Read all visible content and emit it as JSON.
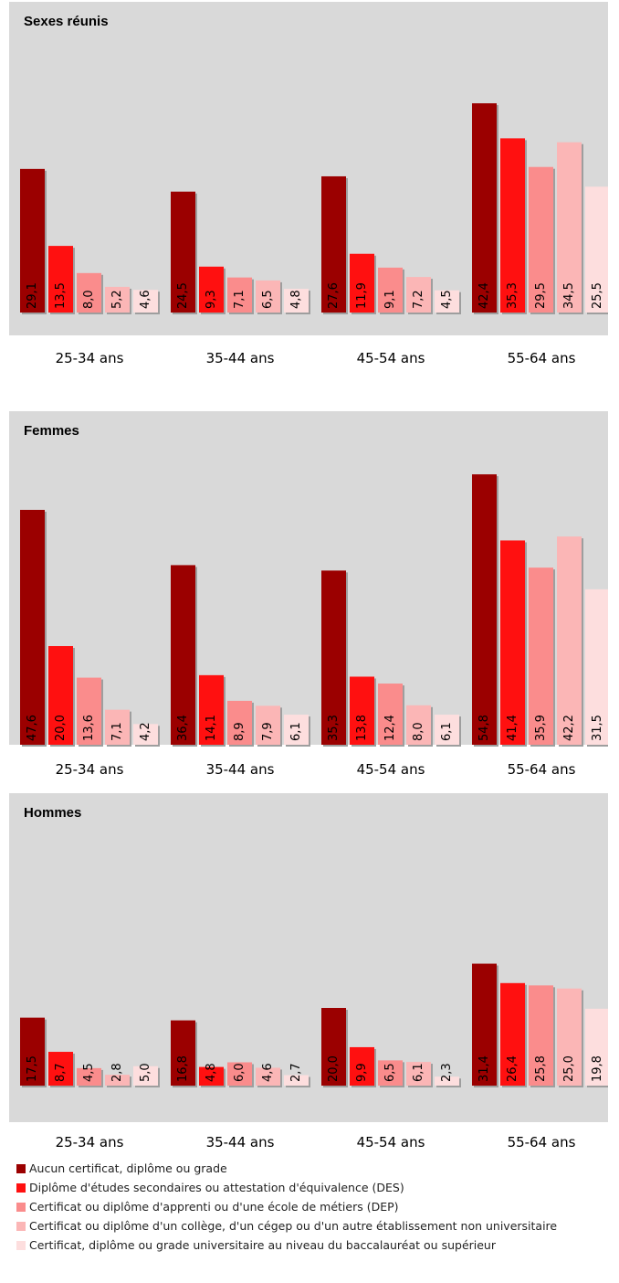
{
  "colors": [
    "#9b0000",
    "#ff1010",
    "#fa8c8c",
    "#fbb6b6",
    "#fddede"
  ],
  "legend": [
    "Aucun certificat, diplôme ou grade",
    "Diplôme d'études secondaires ou attestation d'équivalence (DES)",
    "Certificat ou diplôme d'apprenti ou d'une école de métiers (DEP)",
    "Certificat ou diplôme d'un collège, d'un cégep ou d'un autre établissement non universitaire",
    "Certificat, diplôme ou grade universitaire au niveau du baccalauréat ou supérieur"
  ],
  "chart_data": [
    {
      "type": "bar",
      "title": "Sexes réunis",
      "categories": [
        "25-34 ans",
        "35-44 ans",
        "45-54 ans",
        "55-64 ans"
      ],
      "value_labels": [
        [
          "29,1",
          "13,5",
          "8,0",
          "5,2",
          "4,6"
        ],
        [
          "24,5",
          "9,3",
          "7,1",
          "6,5",
          "4,8"
        ],
        [
          "27,6",
          "11,9",
          "9,1",
          "7,2",
          "4,5"
        ],
        [
          "42,4",
          "35,3",
          "29,5",
          "34,5",
          "25,5"
        ]
      ],
      "values": [
        [
          29.1,
          13.5,
          8.0,
          5.2,
          4.6
        ],
        [
          24.5,
          9.3,
          7.1,
          6.5,
          4.8
        ],
        [
          27.6,
          11.9,
          9.1,
          7.2,
          4.5
        ],
        [
          42.4,
          35.3,
          29.5,
          34.5,
          25.5
        ]
      ],
      "ylim": [
        0,
        60
      ],
      "legend": "bottom"
    },
    {
      "type": "bar",
      "title": "Femmes",
      "categories": [
        "25-34 ans",
        "35-44 ans",
        "45-54 ans",
        "55-64 ans"
      ],
      "value_labels": [
        [
          "47,6",
          "20,0",
          "13,6",
          "7,1",
          "4,2"
        ],
        [
          "36,4",
          "14,1",
          "8,9",
          "7,9",
          "6,1"
        ],
        [
          "35,3",
          "13,8",
          "12,4",
          "8,0",
          "6,1"
        ],
        [
          "54,8",
          "41,4",
          "35,9",
          "42,2",
          "31,5"
        ]
      ],
      "values": [
        [
          47.6,
          20.0,
          13.6,
          7.1,
          4.2
        ],
        [
          36.4,
          14.1,
          8.9,
          7.9,
          6.1
        ],
        [
          35.3,
          13.8,
          12.4,
          8.0,
          6.1
        ],
        [
          54.8,
          41.4,
          35.9,
          42.2,
          31.5
        ]
      ],
      "ylim": [
        0,
        60
      ],
      "legend": "bottom"
    },
    {
      "type": "bar",
      "title": "Hommes",
      "categories": [
        "25-34 ans",
        "35-44 ans",
        "45-54 ans",
        "55-64 ans"
      ],
      "value_labels": [
        [
          "17,5",
          "8,7",
          "4,5",
          "2,8",
          "5,0"
        ],
        [
          "16,8",
          "4,8",
          "6,0",
          "4,6",
          "2,7"
        ],
        [
          "20,0",
          "9,9",
          "6,5",
          "6,1",
          "2,3"
        ],
        [
          "31,4",
          "26,4",
          "25,8",
          "25,0",
          "19,8"
        ]
      ],
      "values": [
        [
          17.5,
          8.7,
          4.5,
          2.8,
          5.0
        ],
        [
          16.8,
          4.8,
          6.0,
          4.6,
          2.7
        ],
        [
          20.0,
          9.9,
          6.5,
          6.1,
          2.3
        ],
        [
          31.4,
          26.4,
          25.8,
          25.0,
          19.8
        ]
      ],
      "ylim": [
        0,
        60
      ],
      "legend": "bottom"
    }
  ]
}
